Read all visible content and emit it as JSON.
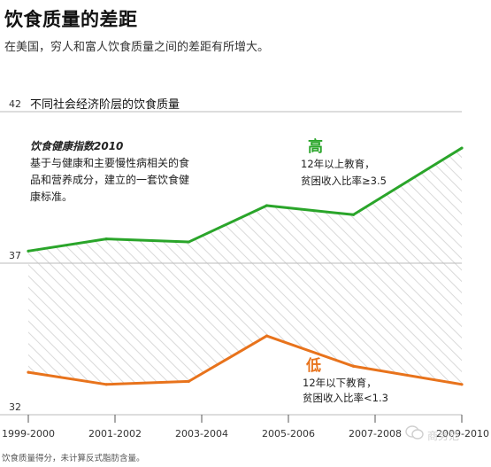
{
  "title": "饮食质量的差距",
  "subtitle": "在美国，穷人和富人饮食质量之间的差距有所增大。",
  "footnote": "饮食质量得分，未计算反式脂肪含量。",
  "watermark": "商务范",
  "description": {
    "title": "饮食健康指数2010",
    "lines": [
      "基于与健康和主要慢性病相关的食",
      "品和营养成分，建立的一套饮食健",
      "康标准。"
    ]
  },
  "colors": {
    "high": "#2aa52a",
    "low": "#e8731c",
    "grid": "#bbbbbb",
    "hatch": "#d9d9d9"
  },
  "chart_data": {
    "type": "line",
    "title": "不同社会经济阶层的饮食质量",
    "xlabel": "",
    "ylabel": "",
    "categories": [
      "1999-2000",
      "2001-2002",
      "2003-2004",
      "2005-2006",
      "2007-2008",
      "2009-2010"
    ],
    "x_positions": [
      0,
      1,
      2,
      3,
      4,
      5
    ],
    "ylim": [
      32,
      42
    ],
    "yticks": [
      32,
      37,
      42
    ],
    "grid": "horizontal",
    "fill_between": "hatched",
    "series": [
      {
        "key": "high",
        "name": "高",
        "label_lines": [
          "12年以上教育，",
          "贫困收入比率≥3.5"
        ],
        "x": [
          0,
          0.9,
          1.85,
          2.75,
          3.75,
          5
        ],
        "values": [
          37.4,
          37.8,
          37.7,
          38.9,
          38.6,
          40.8
        ]
      },
      {
        "key": "low",
        "name": "低",
        "label_lines": [
          "12年以下教育，",
          "贫困收入比率<1.3"
        ],
        "x": [
          0,
          0.9,
          1.85,
          2.75,
          3.75,
          5
        ],
        "values": [
          33.4,
          33.0,
          33.1,
          34.6,
          33.6,
          33.0
        ]
      }
    ]
  }
}
